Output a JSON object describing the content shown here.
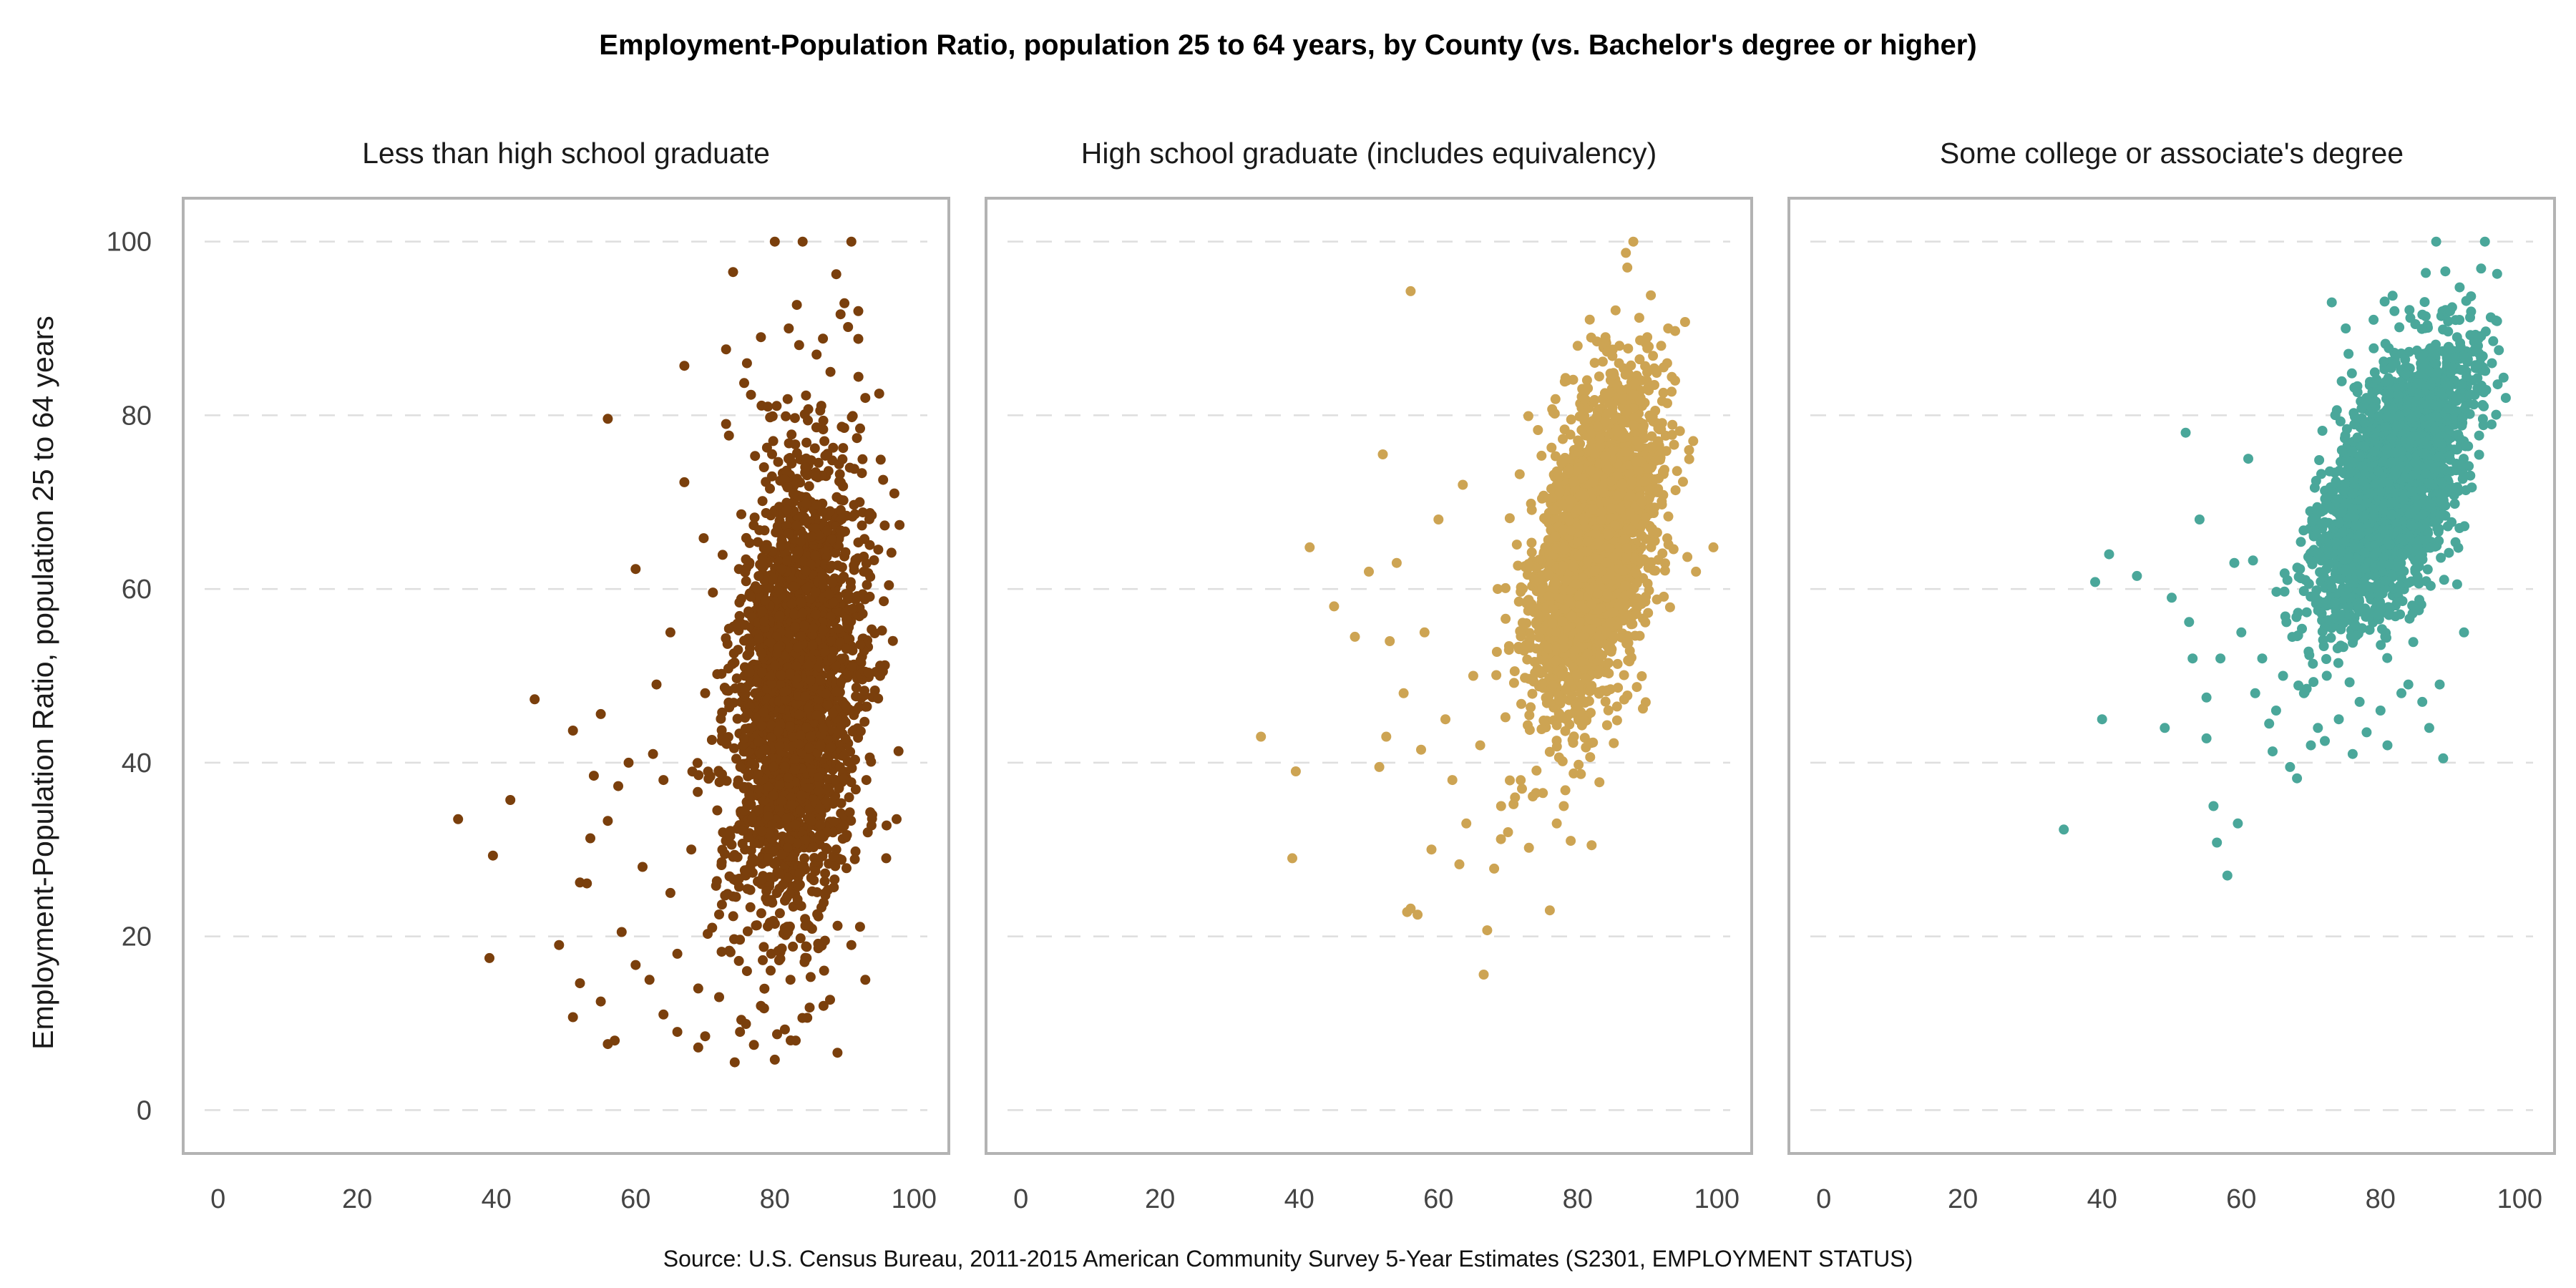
{
  "chart_data": {
    "type": "scatter",
    "title": "Employment-Population Ratio, population 25 to 64 years, by County (vs. Bachelor's degree or higher)",
    "ylabel": "Employment-Population Ratio, population 25 to 64 years",
    "xlabel": "",
    "caption": "Source: U.S. Census Bureau, 2011-2015 American Community Survey 5-Year Estimates (S2301, EMPLOYMENT STATUS)",
    "xlim": [
      -5,
      105
    ],
    "ylim": [
      -5,
      105
    ],
    "x_ticks": [
      0,
      20,
      40,
      60,
      80,
      100
    ],
    "y_ticks": [
      0,
      20,
      40,
      60,
      80,
      100
    ],
    "grid": "horizontal dashed",
    "panels": [
      {
        "name": "Less than high school graduate",
        "color": "#7a3f0c",
        "cluster": {
          "x_mean": 83,
          "x_sd": 4.6,
          "y_mean": 48,
          "y_sd": 13,
          "corr": 0.2,
          "count": 2600
        },
        "points": [
          [
            34.5,
            33.5
          ],
          [
            39,
            17.5
          ],
          [
            39.5,
            29.3
          ],
          [
            42,
            35.7
          ],
          [
            45.5,
            47.3
          ],
          [
            49,
            19
          ],
          [
            51,
            43.7
          ],
          [
            51,
            10.7
          ],
          [
            52,
            26.2
          ],
          [
            52,
            14.6
          ],
          [
            53,
            26.1
          ],
          [
            53.5,
            31.3
          ],
          [
            54,
            38.5
          ],
          [
            55,
            12.5
          ],
          [
            55,
            45.6
          ],
          [
            56,
            33.3
          ],
          [
            56,
            7.6
          ],
          [
            56,
            79.6
          ],
          [
            57,
            8
          ],
          [
            57.5,
            37.3
          ],
          [
            58,
            20.5
          ],
          [
            59,
            40
          ],
          [
            60,
            16.7
          ],
          [
            60,
            62.3
          ],
          [
            61,
            28
          ],
          [
            62,
            15
          ],
          [
            62.5,
            41
          ],
          [
            63,
            49
          ],
          [
            64,
            11
          ],
          [
            64,
            38
          ],
          [
            65,
            25
          ],
          [
            65,
            55
          ],
          [
            66,
            9
          ],
          [
            66,
            18
          ],
          [
            67,
            85.7
          ],
          [
            67,
            72.3
          ],
          [
            68,
            30
          ],
          [
            69,
            14
          ],
          [
            69,
            7.2
          ],
          [
            70,
            8.5
          ],
          [
            70,
            48
          ],
          [
            71,
            21
          ],
          [
            72,
            13
          ],
          [
            73,
            87.6
          ],
          [
            73,
            79
          ],
          [
            74,
            96.5
          ],
          [
            75,
            9
          ],
          [
            76,
            86
          ],
          [
            76,
            16
          ],
          [
            77,
            7.5
          ],
          [
            78,
            89
          ],
          [
            78,
            12
          ],
          [
            79,
            81
          ],
          [
            80,
            100
          ],
          [
            80,
            5.8
          ],
          [
            82,
            90
          ],
          [
            83,
            8
          ],
          [
            84,
            100
          ],
          [
            85,
            11.8
          ],
          [
            86,
            87
          ],
          [
            87,
            12
          ],
          [
            88,
            85
          ],
          [
            89,
            6.6
          ],
          [
            90,
            92.9
          ],
          [
            91,
            100
          ],
          [
            91,
            19
          ],
          [
            92,
            92
          ],
          [
            92,
            88.8
          ],
          [
            93,
            15
          ],
          [
            93,
            82
          ],
          [
            94,
            34
          ],
          [
            95,
            82.5
          ],
          [
            96,
            29
          ],
          [
            97.5,
            33.5
          ]
        ]
      },
      {
        "name": "High school graduate (includes equivalency)",
        "color": "#cda453",
        "cluster": {
          "x_mean": 82.5,
          "x_sd": 4.3,
          "y_mean": 65,
          "y_sd": 9,
          "corr": 0.45,
          "count": 2800
        },
        "points": [
          [
            34.5,
            43
          ],
          [
            39,
            29
          ],
          [
            39.5,
            39
          ],
          [
            41.5,
            64.8
          ],
          [
            45,
            58
          ],
          [
            48,
            54.5
          ],
          [
            50,
            62
          ],
          [
            51.5,
            39.5
          ],
          [
            52,
            75.5
          ],
          [
            52.5,
            43
          ],
          [
            53,
            54
          ],
          [
            54,
            63
          ],
          [
            55,
            48
          ],
          [
            55.5,
            22.8
          ],
          [
            56,
            23.2
          ],
          [
            56,
            94.3
          ],
          [
            57,
            22.5
          ],
          [
            57.5,
            41.5
          ],
          [
            58,
            55
          ],
          [
            59,
            30
          ],
          [
            60,
            68
          ],
          [
            61,
            45
          ],
          [
            62,
            38
          ],
          [
            63,
            28.3
          ],
          [
            63.5,
            72
          ],
          [
            64,
            33
          ],
          [
            65,
            50
          ],
          [
            66,
            42
          ],
          [
            66.5,
            15.6
          ],
          [
            67,
            20.7
          ],
          [
            68,
            27.8
          ],
          [
            68.5,
            60
          ],
          [
            69,
            35
          ],
          [
            70,
            32
          ],
          [
            71,
            36
          ],
          [
            72,
            37
          ],
          [
            73,
            30.2
          ],
          [
            74,
            36.5
          ],
          [
            75,
            36.5
          ],
          [
            76,
            23
          ],
          [
            77,
            33
          ],
          [
            78,
            35
          ],
          [
            79,
            31
          ],
          [
            80,
            88
          ],
          [
            82,
            30.5
          ],
          [
            84,
            89
          ],
          [
            86,
            88
          ],
          [
            88,
            100
          ],
          [
            90,
            89
          ],
          [
            92,
            88
          ],
          [
            93,
            90
          ],
          [
            94,
            84
          ],
          [
            96,
            76
          ],
          [
            97,
            62
          ],
          [
            99.5,
            64.8
          ]
        ]
      },
      {
        "name": "Some college or associate's degree",
        "color": "#4aa79a",
        "cluster": {
          "x_mean": 82,
          "x_sd": 5,
          "y_mean": 72,
          "y_sd": 7.5,
          "corr": 0.55,
          "count": 2800
        },
        "points": [
          [
            34.5,
            32.3
          ],
          [
            39,
            60.8
          ],
          [
            40,
            45
          ],
          [
            41,
            64
          ],
          [
            45,
            61.5
          ],
          [
            49,
            44
          ],
          [
            50,
            59
          ],
          [
            52,
            78
          ],
          [
            52.5,
            56.2
          ],
          [
            53,
            52
          ],
          [
            54,
            68
          ],
          [
            55,
            47.5
          ],
          [
            55,
            42.8
          ],
          [
            56,
            35
          ],
          [
            56.5,
            30.8
          ],
          [
            57,
            52
          ],
          [
            58,
            27
          ],
          [
            59,
            63
          ],
          [
            59.5,
            33
          ],
          [
            60,
            55
          ],
          [
            61,
            75
          ],
          [
            62,
            48
          ],
          [
            63,
            52
          ],
          [
            64,
            44.5
          ],
          [
            64.5,
            41.3
          ],
          [
            65,
            46
          ],
          [
            66,
            50
          ],
          [
            67,
            39.5
          ],
          [
            68,
            38.2
          ],
          [
            69,
            48
          ],
          [
            70,
            42
          ],
          [
            71,
            44
          ],
          [
            72,
            42.5
          ],
          [
            73,
            93
          ],
          [
            74,
            45
          ],
          [
            75,
            90
          ],
          [
            76,
            41
          ],
          [
            77,
            47
          ],
          [
            78,
            43.5
          ],
          [
            79,
            91
          ],
          [
            80,
            46
          ],
          [
            81,
            42
          ],
          [
            82,
            92
          ],
          [
            83,
            48
          ],
          [
            84,
            49
          ],
          [
            85,
            90.5
          ],
          [
            86,
            47
          ],
          [
            87,
            44
          ],
          [
            88,
            100
          ],
          [
            88.5,
            49
          ],
          [
            89,
            40.5
          ],
          [
            90,
            92
          ],
          [
            91,
            89
          ],
          [
            92,
            55
          ],
          [
            93,
            93.7
          ],
          [
            94,
            88
          ],
          [
            95,
            100
          ],
          [
            96,
            86
          ],
          [
            97,
            87.5
          ],
          [
            98,
            82
          ]
        ]
      }
    ]
  }
}
